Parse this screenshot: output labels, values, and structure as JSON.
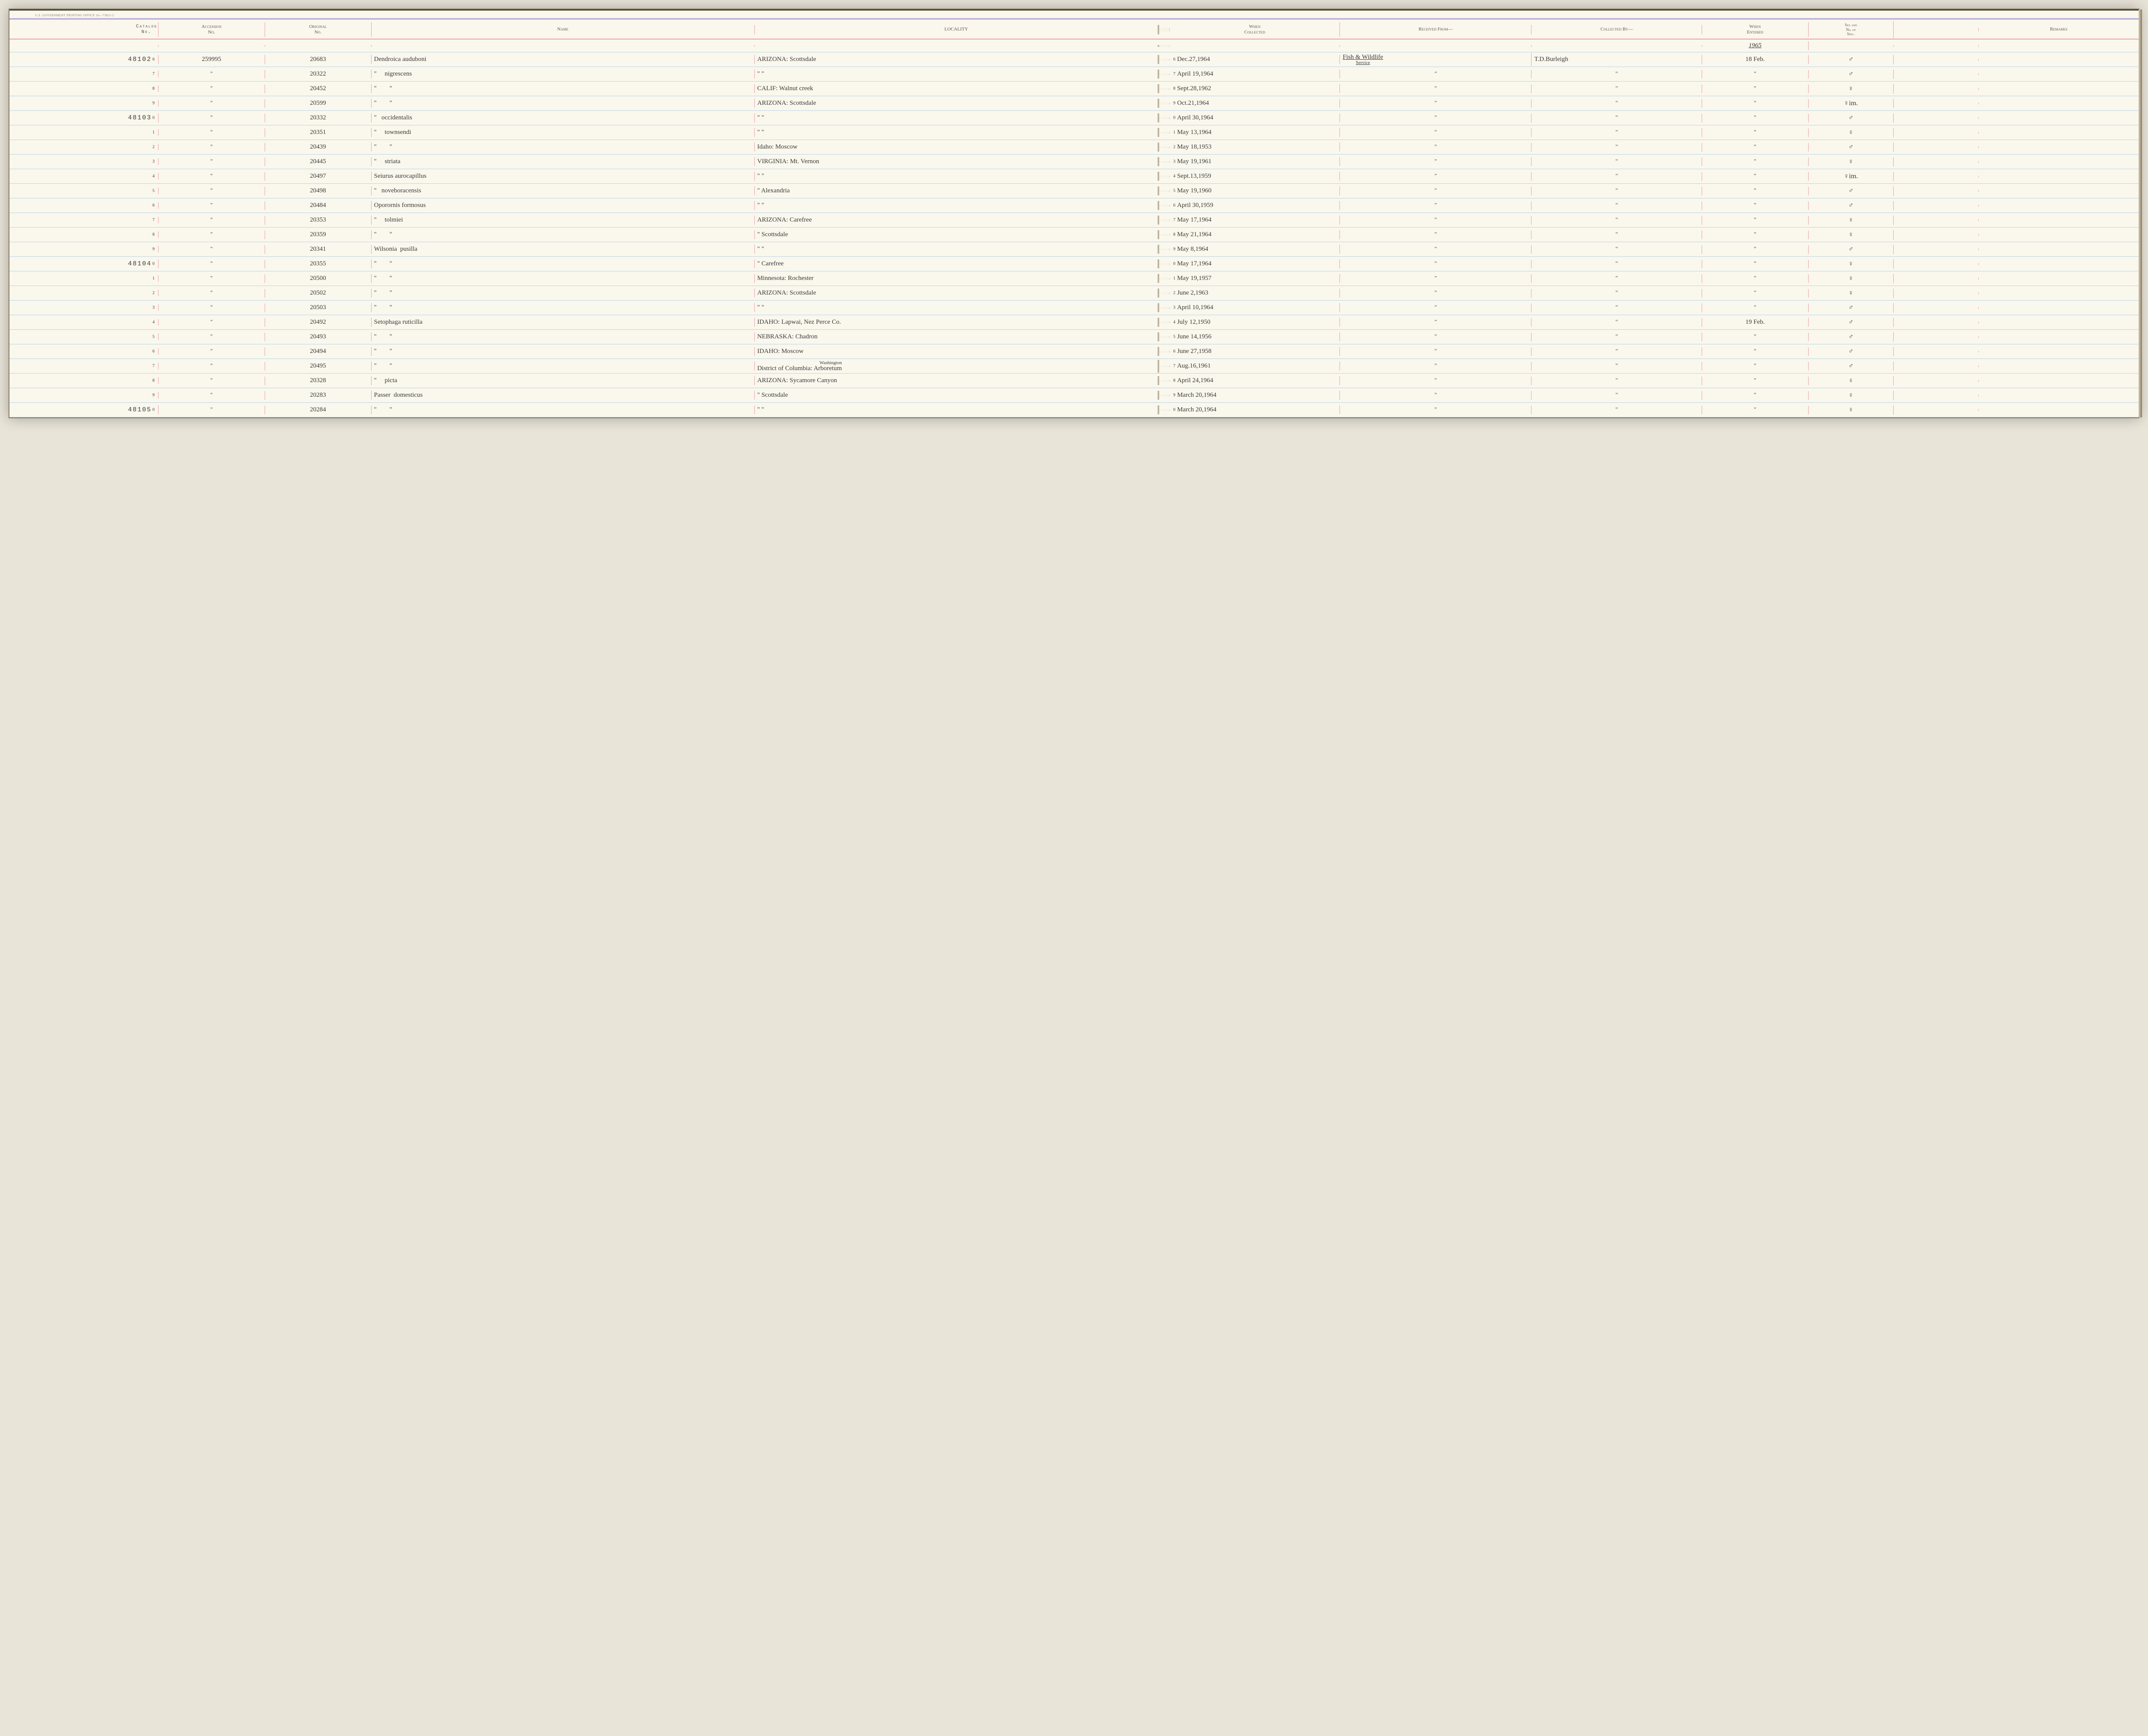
{
  "gov_print_text": "U.S. GOVERNMENT PRINTING OFFICE   16—73821-2",
  "headers": {
    "catalog": "Catalog\nNo.",
    "accession": "Accession\nNo.",
    "original": "Original\nNo.",
    "name": "Name",
    "locality": "LOCALITY",
    "collected": "When\nCollected",
    "received": "Received From—",
    "collectedby": "Collected By—",
    "entered": "When\nEntered",
    "sex": "Sex and\nNo. of\nSpec.",
    "remarks": "Remarks"
  },
  "year_label": "1965",
  "rows": [
    {
      "catalog": "48102",
      "sup": "6",
      "accession": "259995",
      "original": "20683",
      "name": "Dendroica auduboni",
      "locality": "ARIZONA:   Scottsdale",
      "coll_sup": "6",
      "collected": "Dec.27,1964",
      "received": "Fish & Wildlife",
      "received_sub": "Service",
      "collectedby": "T.D.Burleigh",
      "entered": "18 Feb.",
      "sex": "♂"
    },
    {
      "catalog": "",
      "sup": "7",
      "accession": "\"",
      "original": "20322",
      "name": "\"     nigrescens",
      "locality": "\"           \"",
      "coll_sup": "7",
      "collected": "April 19,1964",
      "received": "\"",
      "received_sub": "",
      "collectedby": "\"",
      "entered": "\"",
      "sex": "♂"
    },
    {
      "catalog": "",
      "sup": "8",
      "accession": "\"",
      "original": "20452",
      "name": "\"        \"",
      "locality": "CALIF:   Walnut creek",
      "coll_sup": "8",
      "collected": "Sept.28,1962",
      "received": "\"",
      "received_sub": "",
      "collectedby": "\"",
      "entered": "\"",
      "sex": "♀"
    },
    {
      "catalog": "",
      "sup": "9",
      "accession": "\"",
      "original": "20599",
      "name": "\"        \"",
      "locality": "ARIZONA:   Scottsdale",
      "coll_sup": "9",
      "collected": "Oct.21,1964",
      "received": "\"",
      "received_sub": "",
      "collectedby": "\"",
      "entered": "\"",
      "sex": "♀im."
    },
    {
      "catalog": "48103",
      "sup": "0",
      "accession": "\"",
      "original": "20332",
      "name": "\"   occidentalis",
      "locality": "\"           \"",
      "coll_sup": "0",
      "collected": "April 30,1964",
      "received": "\"",
      "received_sub": "",
      "collectedby": "\"",
      "entered": "\"",
      "sex": "♂"
    },
    {
      "catalog": "",
      "sup": "1",
      "accession": "\"",
      "original": "20351",
      "name": "\"     townsendi",
      "locality": "\"           \"",
      "coll_sup": "1",
      "collected": "May 13,1964",
      "received": "\"",
      "received_sub": "",
      "collectedby": "\"",
      "entered": "\"",
      "sex": "♀"
    },
    {
      "catalog": "",
      "sup": "2",
      "accession": "\"",
      "original": "20439",
      "name": "\"        \"",
      "locality": "Idaho:    Moscow",
      "coll_sup": "2",
      "collected": "May 18,1953",
      "received": "\"",
      "received_sub": "",
      "collectedby": "\"",
      "entered": "\"",
      "sex": "♂"
    },
    {
      "catalog": "",
      "sup": "3",
      "accession": "\"",
      "original": "20445",
      "name": "\"     striata",
      "locality": "VIRGINIA:   Mt. Vernon",
      "coll_sup": "3",
      "collected": "May 19,1961",
      "received": "\"",
      "received_sub": "",
      "collectedby": "\"",
      "entered": "\"",
      "sex": "♀"
    },
    {
      "catalog": "",
      "sup": "4",
      "accession": "\"",
      "original": "20497",
      "name": "Seiurus aurocapillus",
      "locality": "\"           \"",
      "coll_sup": "4",
      "collected": "Sept.13,1959",
      "received": "\"",
      "received_sub": "",
      "collectedby": "\"",
      "entered": "\"",
      "sex": "♀im."
    },
    {
      "catalog": "",
      "sup": "5",
      "accession": "\"",
      "original": "20498",
      "name": "\"   noveboracensis",
      "locality": "\"       Alexandria",
      "coll_sup": "5",
      "collected": "May 19,1960",
      "received": "\"",
      "received_sub": "",
      "collectedby": "\"",
      "entered": "\"",
      "sex": "♂"
    },
    {
      "catalog": "",
      "sup": "6",
      "accession": "\"",
      "original": "20484",
      "name": "Oporornis formosus",
      "locality": "\"           \"",
      "coll_sup": "6",
      "collected": "April 30,1959",
      "received": "\"",
      "received_sub": "",
      "collectedby": "\"",
      "entered": "\"",
      "sex": "♂"
    },
    {
      "catalog": "",
      "sup": "7",
      "accession": "\"",
      "original": "20353",
      "name": "\"     tolmiei",
      "locality": "ARIZONA:   Carefree",
      "coll_sup": "7",
      "collected": "May 17,1964",
      "received": "\"",
      "received_sub": "",
      "collectedby": "\"",
      "entered": "\"",
      "sex": "♀"
    },
    {
      "catalog": "",
      "sup": "8",
      "accession": "\"",
      "original": "20359",
      "name": "\"        \"",
      "locality": "\"       Scottsdale",
      "coll_sup": "8",
      "collected": "May 21,1964",
      "received": "\"",
      "received_sub": "",
      "collectedby": "\"",
      "entered": "\"",
      "sex": "♀"
    },
    {
      "catalog": "",
      "sup": "9",
      "accession": "\"",
      "original": "20341",
      "name": "Wilsonia  pusilla",
      "locality": "\"           \"",
      "coll_sup": "9",
      "collected": "May 8,1964",
      "received": "\"",
      "received_sub": "",
      "collectedby": "\"",
      "entered": "\"",
      "sex": "♂"
    },
    {
      "catalog": "48104",
      "sup": "0",
      "accession": "\"",
      "original": "20355",
      "name": "\"        \"",
      "locality": "\"       Carefree",
      "coll_sup": "0",
      "collected": "May 17,1964",
      "received": "\"",
      "received_sub": "",
      "collectedby": "\"",
      "entered": "\"",
      "sex": "♀"
    },
    {
      "catalog": "",
      "sup": "1",
      "accession": "\"",
      "original": "20500",
      "name": "\"        \"",
      "locality": "Minnesota:  Rochester",
      "coll_sup": "1",
      "collected": "May 19,1957",
      "received": "\"",
      "received_sub": "",
      "collectedby": "\"",
      "entered": "\"",
      "sex": "♀"
    },
    {
      "catalog": "",
      "sup": "2",
      "accession": "\"",
      "original": "20502",
      "name": "\"        \"",
      "locality": "ARIZONA:  Scottsdale",
      "coll_sup": "2",
      "collected": "June 2,1963",
      "received": "\"",
      "received_sub": "",
      "collectedby": "\"",
      "entered": "\"",
      "sex": "♀"
    },
    {
      "catalog": "",
      "sup": "3",
      "accession": "\"",
      "original": "20503",
      "name": "\"        \"",
      "locality": "\"           \"",
      "coll_sup": "3",
      "collected": "April 10,1964",
      "received": "\"",
      "received_sub": "",
      "collectedby": "\"",
      "entered": "\"",
      "sex": "♂"
    },
    {
      "catalog": "",
      "sup": "4",
      "accession": "\"",
      "original": "20492",
      "name": "Setophaga ruticilla",
      "locality": "IDAHO: Lapwai, Nez Perce Co.",
      "coll_sup": "4",
      "collected": "July 12,1950",
      "received": "\"",
      "received_sub": "",
      "collectedby": "\"",
      "entered": "19 Feb.",
      "sex": "♂"
    },
    {
      "catalog": "",
      "sup": "5",
      "accession": "\"",
      "original": "20493",
      "name": "\"        \"",
      "locality": "NEBRASKA:   Chadron",
      "coll_sup": "5",
      "collected": "June 14,1956",
      "received": "\"",
      "received_sub": "",
      "collectedby": "\"",
      "entered": "\"",
      "sex": "♂"
    },
    {
      "catalog": "",
      "sup": "6",
      "accession": "\"",
      "original": "20494",
      "name": "\"        \"",
      "locality": "IDAHO:    Moscow",
      "coll_sup": "6",
      "collected": "June 27,1958",
      "received": "\"",
      "received_sub": "",
      "collectedby": "\"",
      "entered": "\"",
      "sex": "♂"
    },
    {
      "catalog": "",
      "sup": "7",
      "accession": "\"",
      "original": "20495",
      "name": "\"        \"",
      "locality": "District of Columbia:",
      "locality_sup": "Washington\nArboretum",
      "coll_sup": "7",
      "collected": "Aug.16,1961",
      "received": "\"",
      "received_sub": "",
      "collectedby": "\"",
      "entered": "\"",
      "sex": "♂"
    },
    {
      "catalog": "",
      "sup": "8",
      "accession": "\"",
      "original": "20328",
      "name": "\"     picta",
      "locality": "ARIZONA: Sycamore Canyon",
      "coll_sup": "8",
      "collected": "April 24,1964",
      "received": "\"",
      "received_sub": "",
      "collectedby": "\"",
      "entered": "\"",
      "sex": "♀"
    },
    {
      "catalog": "",
      "sup": "9",
      "accession": "\"",
      "original": "20283",
      "name": "Passer  domesticus",
      "locality": "\"      Scottsdale",
      "coll_sup": "9",
      "collected": "March 20,1964",
      "received": "\"",
      "received_sub": "",
      "collectedby": "\"",
      "entered": "\"",
      "sex": "♀"
    },
    {
      "catalog": "48105",
      "sup": "0",
      "accession": "\"",
      "original": "20284",
      "name": "\"        \"",
      "locality": "\"           \"",
      "coll_sup": "0",
      "collected": "March 20,1964",
      "received": "\"",
      "received_sub": "",
      "collectedby": "\"",
      "entered": "\"",
      "sex": "♀"
    }
  ],
  "colors": {
    "page_bg": "#faf7ed",
    "blue_rule": "#b8d4e8",
    "pink_rule": "#e8a0a8",
    "purple_rule": "#b5a8d4",
    "ink": "#3a3a3a",
    "print_ink": "#5a5548"
  }
}
